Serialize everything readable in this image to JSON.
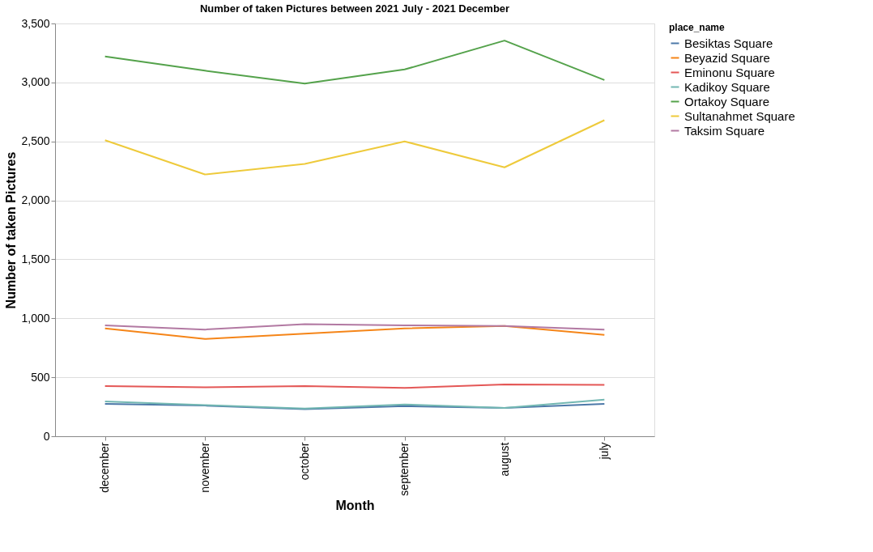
{
  "chart_data": {
    "type": "line",
    "title": "Number of taken Pictures between 2021 July - 2021 December",
    "xlabel": "Month",
    "ylabel": "Number of taken Pictures",
    "legend_title": "place_name",
    "categories": [
      "december",
      "november",
      "october",
      "september",
      "august",
      "july"
    ],
    "series": [
      {
        "name": "Besiktas Square",
        "color": "#4c78a8",
        "values": [
          275,
          260,
          230,
          255,
          240,
          275
        ]
      },
      {
        "name": "Beyazid Square",
        "color": "#f58518",
        "values": [
          915,
          825,
          870,
          915,
          935,
          860
        ]
      },
      {
        "name": "Eminonu Square",
        "color": "#e45756",
        "values": [
          425,
          415,
          425,
          410,
          440,
          435
        ]
      },
      {
        "name": "Kadikoy Square",
        "color": "#72b7b2",
        "values": [
          295,
          265,
          235,
          270,
          240,
          310
        ]
      },
      {
        "name": "Ortakoy Square",
        "color": "#54a24b",
        "values": [
          3220,
          3100,
          2990,
          3110,
          3355,
          3020
        ]
      },
      {
        "name": "Sultanahmet Square",
        "color": "#eeca3b",
        "values": [
          2510,
          2220,
          2310,
          2500,
          2280,
          2680
        ]
      },
      {
        "name": "Taksim Square",
        "color": "#b279a2",
        "values": [
          940,
          905,
          950,
          940,
          935,
          905
        ]
      }
    ],
    "ylim": [
      0,
      3500
    ],
    "yticks": [
      0,
      500,
      {
        "value": 1000,
        "label": "1,000"
      },
      {
        "value": 1500,
        "label": "1,500"
      },
      {
        "value": 2000,
        "label": "2,000"
      },
      {
        "value": 2500,
        "label": "2,500"
      },
      {
        "value": 3000,
        "label": "3,000"
      },
      {
        "value": 3500,
        "label": "3,500"
      }
    ],
    "grid": "y",
    "legend": "top right",
    "marker": "none",
    "line_style": "solid"
  }
}
